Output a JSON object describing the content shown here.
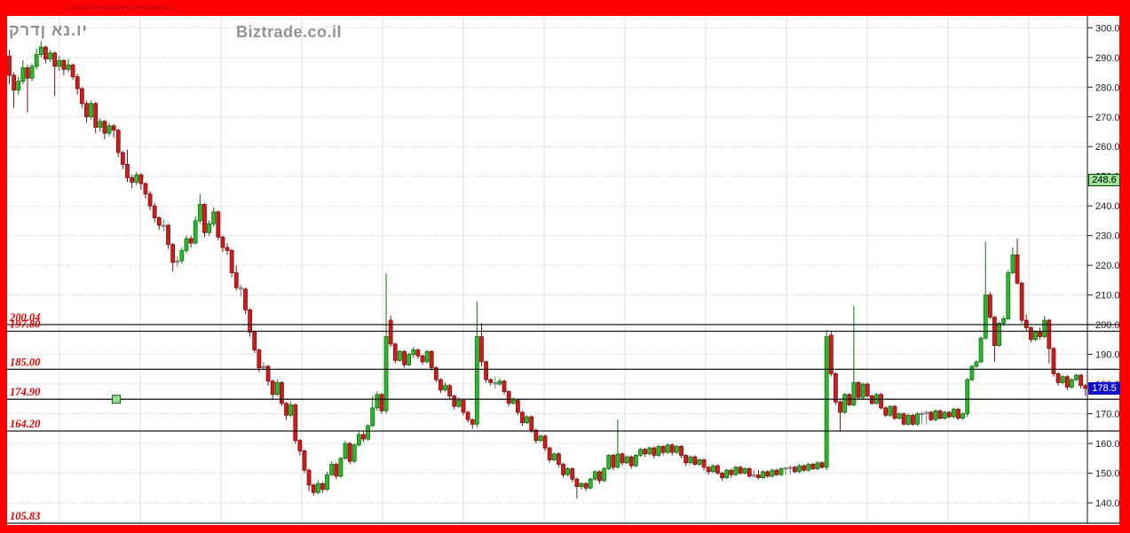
{
  "header": {
    "symbol_title": "קרדן אנ.וי",
    "watermark": "Biztrade.co.il"
  },
  "badges": {
    "indicator": {
      "value": "248.6",
      "price": 248.6
    },
    "last_price": {
      "value": "178.5",
      "price": 178.5
    }
  },
  "y_axis": {
    "ticks": [
      300.0,
      290.0,
      280.0,
      270.0,
      260.0,
      250.0,
      240.0,
      230.0,
      220.0,
      210.0,
      200.0,
      190.0,
      180.0,
      170.0,
      160.0,
      150.0,
      140.0
    ]
  },
  "price_lines": [
    {
      "label": "200.04",
      "value": 200.04
    },
    {
      "label": "197.80",
      "value": 197.8
    },
    {
      "label": "185.00",
      "value": 185.0
    },
    {
      "label": "174.90",
      "value": 174.9
    },
    {
      "label": "164.20",
      "value": 164.2
    },
    {
      "label": "105.83",
      "value": 105.83
    }
  ],
  "line_handle": {
    "on_line": 174.9,
    "x": 131
  },
  "colors": {
    "border": "#fe0000",
    "up_fill": "#2eb82e",
    "up_stroke": "#0e6f0e",
    "down_fill": "#cf1d1d",
    "down_stroke": "#7e0f0f",
    "doji": "#999999",
    "grid": "#c6c6c6",
    "vgrid": "#dcdcdc",
    "level_line": "#1a1a1a",
    "label_red": "#e00000",
    "axis_text": "#1a1a1a",
    "title_gray": "#8e8e8e",
    "badge_green": "#9ce49c",
    "badge_blue": "#1212cc",
    "top_strip": "#a00028"
  },
  "chart_data": {
    "type": "candlestick",
    "title": "קרדן אנ.וי",
    "ylabel": "price",
    "y_range": [
      140,
      300
    ],
    "grid": true,
    "last_close": 178.5,
    "axis_marker": 248.6,
    "horizontal_levels": [
      200.04,
      197.8,
      185.0,
      174.9,
      164.2,
      105.83
    ],
    "ohlc": [
      [
        290.5,
        292.5,
        281,
        284
      ],
      [
        284,
        285,
        273,
        279
      ],
      [
        279,
        283.5,
        277.5,
        282
      ],
      [
        282,
        289,
        281,
        286.5
      ],
      [
        286.5,
        287.5,
        271.5,
        283
      ],
      [
        283,
        288,
        282,
        287
      ],
      [
        287,
        293,
        286,
        291
      ],
      [
        291,
        295.5,
        290,
        293.5
      ],
      [
        293.5,
        294,
        288,
        289.5
      ],
      [
        289.5,
        292.5,
        288.5,
        291.5
      ],
      [
        291.5,
        292,
        277,
        287
      ],
      [
        287,
        290.5,
        285.5,
        289
      ],
      [
        289,
        289.5,
        284,
        286
      ],
      [
        286,
        289.5,
        285,
        287.5
      ],
      [
        287.5,
        288,
        282.5,
        283.5
      ],
      [
        283.5,
        284.5,
        277.5,
        279.5
      ],
      [
        279.5,
        280,
        273,
        274.5
      ],
      [
        274.5,
        275.5,
        268,
        270
      ],
      [
        270,
        275.5,
        269,
        274.5
      ],
      [
        274.5,
        275,
        264.5,
        266.5
      ],
      [
        266.5,
        269.5,
        265,
        268.5
      ],
      [
        268.5,
        269,
        262.5,
        264.5
      ],
      [
        264.5,
        268,
        263.5,
        267
      ],
      [
        267,
        267.5,
        263,
        265.5
      ],
      [
        265.5,
        266,
        256.5,
        258
      ],
      [
        258,
        258.5,
        252.5,
        254
      ],
      [
        254,
        259,
        248,
        249.5
      ],
      [
        249.5,
        250.5,
        246,
        248
      ],
      [
        248,
        251.5,
        247,
        250.5
      ],
      [
        250.5,
        251,
        245.5,
        247.5
      ],
      [
        247.5,
        248,
        242.5,
        244
      ],
      [
        244,
        245,
        238.5,
        240
      ],
      [
        240,
        241,
        234.5,
        236
      ],
      [
        236,
        236.5,
        232,
        233.5
      ],
      [
        233.5,
        235.5,
        231.5,
        233.5
      ],
      [
        233.5,
        234,
        225.5,
        227
      ],
      [
        227,
        227.5,
        218,
        221
      ],
      [
        221,
        223,
        219.5,
        221.5
      ],
      [
        221.5,
        226,
        220.5,
        225
      ],
      [
        225,
        230,
        224,
        229
      ],
      [
        229,
        230,
        226,
        227.5
      ],
      [
        227.5,
        236.5,
        227,
        235
      ],
      [
        235,
        244,
        234,
        240.5
      ],
      [
        240.5,
        241,
        229.5,
        231
      ],
      [
        231,
        235,
        230,
        234
      ],
      [
        234,
        239.5,
        233,
        238
      ],
      [
        238,
        238.5,
        228.5,
        229.5
      ],
      [
        229.5,
        230,
        224.5,
        226
      ],
      [
        226,
        227.5,
        223.5,
        225
      ],
      [
        225,
        225.5,
        216,
        217.5
      ],
      [
        217.5,
        220,
        211.5,
        212.5
      ],
      [
        212.5,
        213.5,
        209.5,
        212
      ],
      [
        212,
        212.5,
        203.5,
        205
      ],
      [
        205,
        205.5,
        196,
        197.5
      ],
      [
        197.5,
        198,
        190.5,
        191.5
      ],
      [
        191.5,
        192,
        184,
        185.5
      ],
      [
        185.5,
        187.5,
        184.5,
        186
      ],
      [
        186,
        186.5,
        179.5,
        181
      ],
      [
        181,
        181.5,
        175,
        176.5
      ],
      [
        176.5,
        181.5,
        176,
        180.5
      ],
      [
        180.5,
        181,
        172.5,
        173.5
      ],
      [
        173.5,
        174,
        168,
        169.5
      ],
      [
        169.5,
        174,
        169,
        173
      ],
      [
        173,
        173.5,
        160,
        161
      ],
      [
        161,
        161.5,
        156,
        157.5
      ],
      [
        157.5,
        158,
        150,
        151
      ],
      [
        151,
        151.5,
        144,
        146
      ],
      [
        146,
        146.5,
        142.5,
        143.5
      ],
      [
        143.5,
        147.5,
        143,
        146.5
      ],
      [
        146.5,
        147,
        143.5,
        144.5
      ],
      [
        144.5,
        150.5,
        144,
        149.5
      ],
      [
        149.5,
        154,
        149,
        153
      ],
      [
        153,
        153.5,
        148,
        149
      ],
      [
        149,
        155.5,
        148.5,
        155
      ],
      [
        155,
        161,
        154.5,
        160
      ],
      [
        160,
        160.5,
        153,
        154
      ],
      [
        154,
        160,
        153.5,
        159.5
      ],
      [
        159.5,
        164,
        159,
        163
      ],
      [
        163,
        164,
        160.5,
        161.5
      ],
      [
        161.5,
        166.5,
        161,
        166
      ],
      [
        166,
        176,
        165.5,
        172
      ],
      [
        172,
        177.5,
        171,
        176.5
      ],
      [
        176.5,
        177,
        170,
        171
      ],
      [
        171,
        217.3,
        170,
        196
      ],
      [
        201.5,
        203,
        192.5,
        193.5
      ],
      [
        193.5,
        194,
        187,
        188
      ],
      [
        188,
        191.5,
        187.5,
        191
      ],
      [
        191,
        191.5,
        185.5,
        186.5
      ],
      [
        186.5,
        190.5,
        186,
        190
      ],
      [
        190,
        192.5,
        189,
        191.5
      ],
      [
        191.5,
        192,
        188.5,
        189.5
      ],
      [
        189.5,
        190,
        186.5,
        187.5
      ],
      [
        187.5,
        191.5,
        187,
        191
      ],
      [
        191,
        191.5,
        184.5,
        185.5
      ],
      [
        185.5,
        186,
        180.5,
        181.5
      ],
      [
        181.5,
        182,
        177,
        178
      ],
      [
        178,
        180.5,
        177.5,
        179.5
      ],
      [
        179.5,
        180,
        175,
        176
      ],
      [
        176,
        176.5,
        171.5,
        172.5
      ],
      [
        172.5,
        175.5,
        172,
        174.5
      ],
      [
        174.5,
        175,
        169.5,
        170.5
      ],
      [
        170.5,
        171,
        167,
        168
      ],
      [
        168,
        168.5,
        165,
        166.5
      ],
      [
        166.5,
        207.8,
        165.5,
        196
      ],
      [
        196,
        200.5,
        186,
        187.5
      ],
      [
        187.5,
        188,
        180.5,
        181.5
      ],
      [
        181.5,
        182,
        179.5,
        180.5
      ],
      [
        180.5,
        182.5,
        178.5,
        180
      ],
      [
        180,
        182,
        179.5,
        181
      ],
      [
        181,
        181.5,
        176.5,
        177.5
      ],
      [
        177.5,
        178,
        172.5,
        173.5
      ],
      [
        173.5,
        175.5,
        173,
        174.5
      ],
      [
        174.5,
        175,
        169.5,
        170.5
      ],
      [
        170.5,
        171,
        166,
        167
      ],
      [
        167,
        169.5,
        166.5,
        169
      ],
      [
        169,
        169.5,
        163.5,
        164.5
      ],
      [
        164.5,
        165,
        160,
        161
      ],
      [
        161,
        163,
        160.5,
        162.5
      ],
      [
        162.5,
        163,
        157.5,
        158.5
      ],
      [
        158.5,
        159,
        153.5,
        154.5
      ],
      [
        154.5,
        157,
        154,
        156.5
      ],
      [
        156.5,
        157,
        152,
        153
      ],
      [
        153,
        153.5,
        148.5,
        149.5
      ],
      [
        149.5,
        152,
        149,
        151.5
      ],
      [
        151.5,
        152,
        147,
        148
      ],
      [
        148,
        148.5,
        141.5,
        145.5
      ],
      [
        145.5,
        147,
        144.5,
        146.5
      ],
      [
        146.5,
        147,
        144,
        145
      ],
      [
        145,
        148.5,
        144.5,
        148
      ],
      [
        148,
        151,
        147.5,
        150.5
      ],
      [
        150.5,
        151,
        146.5,
        147.5
      ],
      [
        147.5,
        152,
        147,
        151.5
      ],
      [
        151.5,
        156.5,
        151,
        156
      ],
      [
        156,
        156.5,
        151,
        152
      ],
      [
        152,
        168,
        151.5,
        156.5
      ],
      [
        156.5,
        157,
        152.5,
        153.5
      ],
      [
        153.5,
        156,
        153,
        155.5
      ],
      [
        155.5,
        156,
        151.5,
        152.5
      ],
      [
        152.5,
        156.5,
        152,
        156
      ],
      [
        156,
        158.5,
        155.5,
        158
      ],
      [
        158,
        158.5,
        155.5,
        156.5
      ],
      [
        156.5,
        159,
        156,
        158.5
      ],
      [
        158.5,
        159,
        155,
        156
      ],
      [
        156,
        159.5,
        155.5,
        159
      ],
      [
        159,
        159.5,
        156,
        157
      ],
      [
        157,
        160,
        156.5,
        159.5
      ],
      [
        159.5,
        160,
        156,
        157
      ],
      [
        157,
        159.5,
        156.5,
        159
      ],
      [
        159,
        159.5,
        155,
        156
      ],
      [
        156,
        156.5,
        152.5,
        153.5
      ],
      [
        153.5,
        156,
        153,
        155.5
      ],
      [
        155.5,
        156,
        152.5,
        153
      ],
      [
        153,
        155,
        152.5,
        154.5
      ],
      [
        154.5,
        155,
        151,
        152
      ],
      [
        152,
        152.5,
        149.5,
        150.5
      ],
      [
        150.5,
        153,
        150,
        152.5
      ],
      [
        152.5,
        153,
        149.5,
        150
      ],
      [
        150,
        150.5,
        147.5,
        148.5
      ],
      [
        148.5,
        151.5,
        148,
        151
      ],
      [
        151,
        151.5,
        148.5,
        149.5
      ],
      [
        149.5,
        152.5,
        149,
        152
      ],
      [
        152,
        152.5,
        149.5,
        150
      ],
      [
        150,
        152,
        149.5,
        151.5
      ],
      [
        151.5,
        152,
        148.5,
        149
      ],
      [
        149,
        151,
        148.5,
        149.4
      ],
      [
        149.4,
        151,
        148,
        148.5
      ],
      [
        148.5,
        151,
        148,
        150.5
      ],
      [
        150.5,
        151,
        148.5,
        149
      ],
      [
        149,
        151.5,
        148.5,
        151
      ],
      [
        151,
        151.5,
        149,
        149.5
      ],
      [
        149.5,
        152,
        149,
        151.5
      ],
      [
        151.5,
        152,
        149.5,
        151.8
      ],
      [
        151.8,
        152.5,
        149.5,
        152
      ],
      [
        152,
        152.5,
        150,
        150.5
      ],
      [
        150.5,
        153,
        150,
        152.5
      ],
      [
        152.5,
        153,
        150.5,
        151
      ],
      [
        151,
        153.5,
        150.5,
        153
      ],
      [
        153,
        153.5,
        151,
        151.5
      ],
      [
        151.5,
        154,
        151,
        153.5
      ],
      [
        153.5,
        154,
        151.5,
        152
      ],
      [
        152,
        198.3,
        151,
        196
      ],
      [
        196.5,
        198,
        182.5,
        183.5
      ],
      [
        183.5,
        184,
        173,
        174
      ],
      [
        174,
        174.5,
        164,
        170.5
      ],
      [
        170.5,
        177,
        170,
        176.5
      ],
      [
        176.5,
        177,
        172.5,
        173
      ],
      [
        173,
        206.3,
        172.5,
        180.5
      ],
      [
        180.5,
        181,
        175,
        175.5
      ],
      [
        175.5,
        180.5,
        175,
        180
      ],
      [
        180,
        180.5,
        175.5,
        176
      ],
      [
        176,
        176.5,
        173,
        173.5
      ],
      [
        173.5,
        177,
        173,
        176.5
      ],
      [
        176.5,
        177,
        171.5,
        172
      ],
      [
        172,
        172.5,
        169,
        169.5
      ],
      [
        169.5,
        173,
        169,
        172.5
      ],
      [
        172.5,
        173,
        168,
        168.5
      ],
      [
        168.5,
        170.5,
        168,
        170
      ],
      [
        170,
        170.5,
        166,
        166.5
      ],
      [
        166.5,
        170,
        166,
        169.5
      ],
      [
        169.5,
        170,
        166,
        166.5
      ],
      [
        166.5,
        170.5,
        166,
        170
      ],
      [
        170,
        170.8,
        166.5,
        170.1
      ],
      [
        170.1,
        171,
        166.5,
        170.5
      ],
      [
        170.5,
        171,
        167.5,
        168
      ],
      [
        168,
        171.5,
        167.5,
        171
      ],
      [
        171,
        171.5,
        168,
        168.5
      ],
      [
        168.5,
        171,
        168,
        170.5
      ],
      [
        170.5,
        171,
        168.5,
        169
      ],
      [
        169,
        172,
        168.5,
        171.5
      ],
      [
        171.5,
        172,
        168,
        168.5
      ],
      [
        168.5,
        170.5,
        168,
        170
      ],
      [
        170,
        182,
        169,
        181.5
      ],
      [
        181.5,
        186.5,
        181,
        186
      ],
      [
        186,
        188,
        185.5,
        187.5
      ],
      [
        187.5,
        196,
        187,
        195.5
      ],
      [
        195.5,
        228,
        195,
        210
      ],
      [
        210,
        211,
        202,
        202.5
      ],
      [
        202.5,
        203,
        187.5,
        193
      ],
      [
        193,
        201,
        192.5,
        200.5
      ],
      [
        200.5,
        203,
        199.5,
        202
      ],
      [
        202,
        218.5,
        201.5,
        217.5
      ],
      [
        217.5,
        226,
        217,
        223.5
      ],
      [
        223.5,
        229,
        213.5,
        214
      ],
      [
        214,
        214.5,
        200.5,
        201.5
      ],
      [
        201.5,
        203.5,
        198,
        199
      ],
      [
        199,
        199.5,
        194,
        195
      ],
      [
        195,
        198,
        194.5,
        197.5
      ],
      [
        197.5,
        199,
        195,
        196
      ],
      [
        196,
        203,
        195.5,
        201.5
      ],
      [
        201.5,
        202,
        187,
        192
      ],
      [
        192,
        192.5,
        182.5,
        183.5
      ],
      [
        183.5,
        184,
        179.5,
        180.5
      ],
      [
        180.5,
        183,
        180,
        182.5
      ],
      [
        182.5,
        183,
        178,
        179
      ],
      [
        179,
        182,
        178.5,
        181.5
      ],
      [
        181.5,
        183.5,
        181,
        183
      ],
      [
        183,
        183.5,
        178.5,
        179.5
      ],
      [
        179.5,
        180,
        176,
        178.5
      ]
    ]
  }
}
